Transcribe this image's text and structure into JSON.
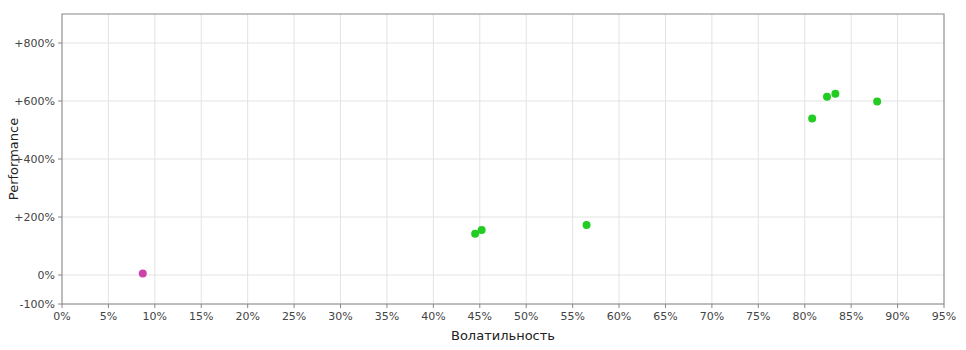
{
  "chart_data": {
    "type": "scatter",
    "xlabel": "Волатильность",
    "ylabel": "Performance",
    "x": [
      0.087,
      0.445,
      0.452,
      0.565,
      0.808,
      0.824,
      0.833,
      0.878
    ],
    "values": [
      0.05,
      1.42,
      1.55,
      1.72,
      5.4,
      6.15,
      6.25,
      5.98
    ],
    "colors": [
      "#cc44aa",
      "#22cc22",
      "#22cc22",
      "#22cc22",
      "#22cc22",
      "#22cc22",
      "#22cc22",
      "#22cc22"
    ],
    "xlim": [
      0.0,
      0.95
    ],
    "ylim": [
      -1.0,
      9.0
    ],
    "xticks": [
      {
        "value": 0.0,
        "label": "0%"
      },
      {
        "value": 0.05,
        "label": "5%"
      },
      {
        "value": 0.1,
        "label": "10%"
      },
      {
        "value": 0.15,
        "label": "15%"
      },
      {
        "value": 0.2,
        "label": "20%"
      },
      {
        "value": 0.25,
        "label": "25%"
      },
      {
        "value": 0.3,
        "label": "30%"
      },
      {
        "value": 0.35,
        "label": "35%"
      },
      {
        "value": 0.4,
        "label": "40%"
      },
      {
        "value": 0.45,
        "label": "45%"
      },
      {
        "value": 0.5,
        "label": "50%"
      },
      {
        "value": 0.55,
        "label": "55%"
      },
      {
        "value": 0.6,
        "label": "60%"
      },
      {
        "value": 0.65,
        "label": "65%"
      },
      {
        "value": 0.7,
        "label": "70%"
      },
      {
        "value": 0.75,
        "label": "75%"
      },
      {
        "value": 0.8,
        "label": "80%"
      },
      {
        "value": 0.85,
        "label": "85%"
      },
      {
        "value": 0.9,
        "label": "90%"
      },
      {
        "value": 0.95,
        "label": "95%"
      }
    ],
    "yticks": [
      {
        "value": -1.0,
        "label": "-100%"
      },
      {
        "value": 0.0,
        "label": "0%"
      },
      {
        "value": 2.0,
        "label": "+200%"
      },
      {
        "value": 4.0,
        "label": "+400%"
      },
      {
        "value": 6.0,
        "label": "+600%"
      },
      {
        "value": 8.0,
        "label": "+800%"
      }
    ],
    "grid": true
  }
}
